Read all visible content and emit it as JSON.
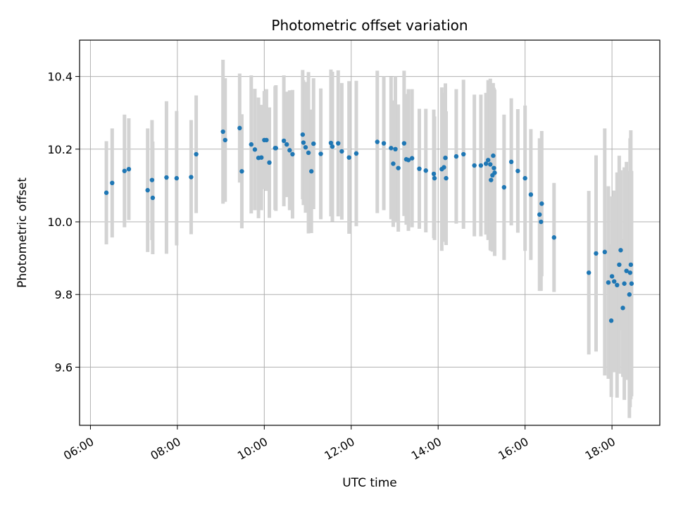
{
  "chart_data": {
    "type": "scatter",
    "title": "Photometric offset variation",
    "xlabel": "UTC time",
    "ylabel": "Photometric offset",
    "xlim": [
      "05:45",
      "19:06"
    ],
    "ylim": [
      9.44,
      10.5
    ],
    "xticks": [
      "06:00",
      "08:00",
      "10:00",
      "12:00",
      "14:00",
      "16:00",
      "18:00"
    ],
    "yticks": [
      "9.6",
      "9.8",
      "10.0",
      "10.2",
      "10.4"
    ],
    "grid": true,
    "error_bar_color": "#d3d3d3",
    "point_color": "#1f77b4",
    "series": [
      {
        "x": [
          "06:22",
          "06:30",
          "06:47",
          "06:53",
          "07:19",
          "07:25",
          "07:26",
          "07:45",
          "07:59",
          "08:19",
          "08:26",
          "09:03",
          "09:06",
          "09:26",
          "09:29",
          "09:42",
          "09:47",
          "09:52",
          "09:56",
          "10:00",
          "10:03",
          "10:07",
          "10:15",
          "10:16",
          "10:27",
          "10:31",
          "10:35",
          "10:39",
          "10:53",
          "10:54",
          "10:57",
          "11:01",
          "11:05",
          "11:08",
          "11:18",
          "11:32",
          "11:34",
          "11:42",
          "11:47",
          "11:57",
          "12:07",
          "12:36",
          "12:45",
          "12:55",
          "12:58",
          "13:01",
          "13:05",
          "13:13",
          "13:16",
          "13:19",
          "13:24",
          "13:34",
          "13:43",
          "13:54",
          "13:55",
          "14:05",
          "14:08",
          "14:10",
          "14:11",
          "14:25",
          "14:35",
          "14:50",
          "14:59",
          "15:06",
          "15:09",
          "15:12",
          "15:13",
          "15:15",
          "15:16",
          "15:17",
          "15:18",
          "15:31",
          "15:41",
          "15:50",
          "16:00",
          "16:08",
          "16:20",
          "16:22",
          "16:23",
          "16:40",
          "17:28",
          "17:38",
          "17:50",
          "17:55",
          "17:59",
          "18:00",
          "18:03",
          "18:07",
          "18:10",
          "18:12",
          "18:15",
          "18:17",
          "18:20",
          "18:24",
          "18:25",
          "18:26",
          "18:27"
        ],
        "y": [
          10.08,
          10.107,
          10.14,
          10.145,
          10.087,
          10.115,
          10.066,
          10.122,
          10.12,
          10.123,
          10.186,
          10.248,
          10.225,
          10.258,
          10.139,
          10.213,
          10.199,
          10.176,
          10.177,
          10.225,
          10.225,
          10.163,
          10.203,
          10.203,
          10.223,
          10.213,
          10.197,
          10.186,
          10.24,
          10.218,
          10.205,
          10.19,
          10.139,
          10.215,
          10.187,
          10.217,
          10.207,
          10.216,
          10.194,
          10.177,
          10.188,
          10.22,
          10.216,
          10.203,
          10.16,
          10.2,
          10.148,
          10.216,
          10.172,
          10.17,
          10.175,
          10.146,
          10.141,
          10.132,
          10.12,
          10.145,
          10.15,
          10.176,
          10.12,
          10.18,
          10.186,
          10.155,
          10.155,
          10.16,
          10.17,
          10.158,
          10.115,
          10.128,
          10.182,
          10.148,
          10.135,
          10.095,
          10.165,
          10.14,
          10.12,
          10.075,
          10.02,
          10.0,
          10.05,
          9.957,
          9.86,
          9.913,
          9.917,
          9.833,
          9.728,
          9.85,
          9.836,
          9.826,
          9.882,
          9.922,
          9.763,
          9.83,
          9.865,
          9.8,
          9.86,
          9.882,
          9.83
        ],
        "err": [
          0.142,
          0.15,
          0.155,
          0.14,
          0.17,
          0.165,
          0.155,
          0.21,
          0.185,
          0.157,
          0.162,
          0.198,
          0.17,
          0.15,
          0.157,
          0.19,
          0.167,
          0.166,
          0.145,
          0.135,
          0.14,
          0.152,
          0.17,
          0.173,
          0.18,
          0.145,
          0.165,
          0.177,
          0.178,
          0.172,
          0.18,
          0.222,
          0.17,
          0.18,
          0.18,
          0.202,
          0.206,
          0.201,
          0.188,
          0.21,
          0.2,
          0.196,
          0.184,
          0.196,
          0.174,
          0.2,
          0.175,
          0.2,
          0.18,
          0.195,
          0.19,
          0.165,
          0.17,
          0.177,
          0.17,
          0.225,
          0.205,
          0.205,
          0.184,
          0.185,
          0.205,
          0.195,
          0.195,
          0.195,
          0.22,
          0.236,
          0.195,
          0.21,
          0.2,
          0.221,
          0.229,
          0.2,
          0.175,
          0.17,
          0.2,
          0.18,
          0.21,
          0.19,
          0.2,
          0.15,
          0.225,
          0.27,
          0.34,
          0.265,
          0.21,
          0.22,
          0.25,
          0.31,
          0.3,
          0.22,
          0.19,
          0.32,
          0.3,
          0.34,
          0.37,
          0.37,
          0.31
        ]
      }
    ]
  }
}
